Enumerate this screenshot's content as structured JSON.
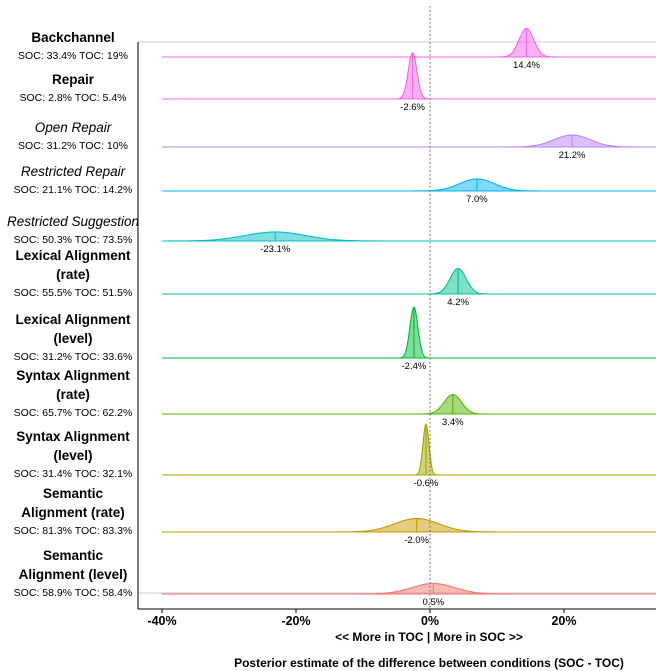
{
  "chart_data": {
    "type": "ridgeline",
    "xlabel": "Posterior estimate of the difference between conditions (SOC - TOC)",
    "direction_label": "<< More in TOC | More in SOC >>",
    "xlim": [
      -42,
      33
    ],
    "x_ticks": [
      -40,
      -20,
      0,
      20
    ],
    "x_tick_labels": [
      "-40%",
      "-20%",
      "0%",
      "20%"
    ],
    "reference_line": 0,
    "series": [
      {
        "name": [
          "Backchannel"
        ],
        "italic": false,
        "stat": "SOC: 33.4% TOC: 19%",
        "mean": 14.4,
        "mean_label": "14.4%",
        "sd": 1.1,
        "color": "#f564e3",
        "peak_height": 0.95
      },
      {
        "name": [
          "Repair"
        ],
        "italic": false,
        "stat": "SOC: 2.8% TOC: 5.4%",
        "mean": -2.6,
        "mean_label": "-2.6%",
        "sd": 0.65,
        "color": "#f564e3",
        "peak_height": 1.55
      },
      {
        "name": [
          "Open Repair"
        ],
        "italic": true,
        "stat": "SOC: 31.2% TOC: 10%",
        "mean": 21.2,
        "mean_label": "21.2%",
        "sd": 2.7,
        "color": "#b983ff",
        "peak_height": 0.4
      },
      {
        "name": [
          "Restricted Repair"
        ],
        "italic": true,
        "stat": "SOC: 21.1% TOC: 14.2%",
        "mean": 7.0,
        "mean_label": "7.0%",
        "sd": 2.6,
        "color": "#00b4f0",
        "peak_height": 0.4
      },
      {
        "name": [
          "Restricted Suggestion"
        ],
        "italic": true,
        "stat": "SOC: 50.3% TOC: 73.5%",
        "mean": -23.1,
        "mean_label": "-23.1%",
        "sd": 4.5,
        "color": "#00bfc4",
        "peak_height": 0.3
      },
      {
        "name": [
          "Lexical Alignment",
          "(rate)"
        ],
        "italic": false,
        "stat": "SOC: 55.5% TOC: 51.5%",
        "mean": 4.2,
        "mean_label": "4.2%",
        "sd": 1.2,
        "color": "#00c094",
        "peak_height": 0.85
      },
      {
        "name": [
          "Lexical Alignment",
          "(level)"
        ],
        "italic": false,
        "stat": "SOC: 31.2% TOC: 33.6%",
        "mean": -2.4,
        "mean_label": "-2.4%",
        "sd": 0.6,
        "color": "#00ba38",
        "peak_height": 1.7
      },
      {
        "name": [
          "Syntax Alignment",
          "(rate)"
        ],
        "italic": false,
        "stat": "SOC: 65.7% TOC: 62.2%",
        "mean": 3.4,
        "mean_label": "3.4%",
        "sd": 1.3,
        "color": "#53b400",
        "peak_height": 0.65
      },
      {
        "name": [
          "Syntax Alignment",
          "(level)"
        ],
        "italic": false,
        "stat": "SOC: 31.4% TOC: 32.1%",
        "mean": -0.6,
        "mean_label": "-0.6%",
        "sd": 0.45,
        "color": "#a3a500",
        "peak_height": 1.7
      },
      {
        "name": [
          "Semantic",
          "Alignment (rate)"
        ],
        "italic": false,
        "stat": "SOC: 81.3% TOC: 83.3%",
        "mean": -2.0,
        "mean_label": "-2.0%",
        "sd": 3.3,
        "color": "#c49a00",
        "peak_height": 0.45
      },
      {
        "name": [
          "Semantic",
          "Alignment (level)"
        ],
        "italic": false,
        "stat": "SOC: 58.9% TOC: 58.4%",
        "mean": 0.5,
        "mean_label": "0.5%",
        "sd": 3.2,
        "color": "#f8766d",
        "peak_height": 0.35
      }
    ]
  }
}
